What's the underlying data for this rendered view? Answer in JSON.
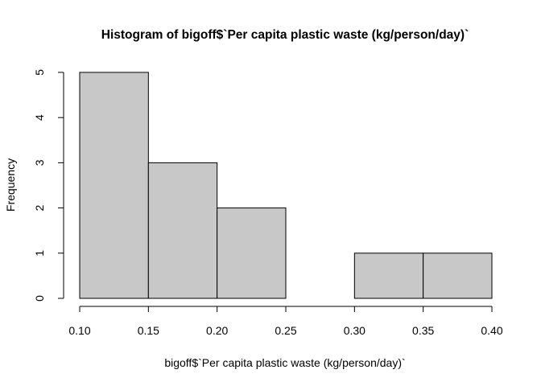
{
  "chart_data": {
    "type": "bar",
    "title": "Histogram of bigoff$`Per capita plastic waste (kg/person/day)`",
    "xlabel": "bigoff$`Per capita plastic waste (kg/person/day)`",
    "ylabel": "Frequency",
    "bins": [
      {
        "start": 0.1,
        "end": 0.15,
        "count": 5
      },
      {
        "start": 0.15,
        "end": 0.2,
        "count": 3
      },
      {
        "start": 0.2,
        "end": 0.25,
        "count": 2
      },
      {
        "start": 0.25,
        "end": 0.3,
        "count": 0
      },
      {
        "start": 0.3,
        "end": 0.35,
        "count": 1
      },
      {
        "start": 0.35,
        "end": 0.4,
        "count": 1
      }
    ],
    "xticks": [
      "0.10",
      "0.15",
      "0.20",
      "0.25",
      "0.30",
      "0.35",
      "0.40"
    ],
    "yticks": [
      "0",
      "1",
      "2",
      "3",
      "4",
      "5"
    ],
    "xlim": [
      0.1,
      0.4
    ],
    "ylim": [
      0,
      5
    ],
    "grid": false,
    "bar_color": "#c8c8c8"
  }
}
